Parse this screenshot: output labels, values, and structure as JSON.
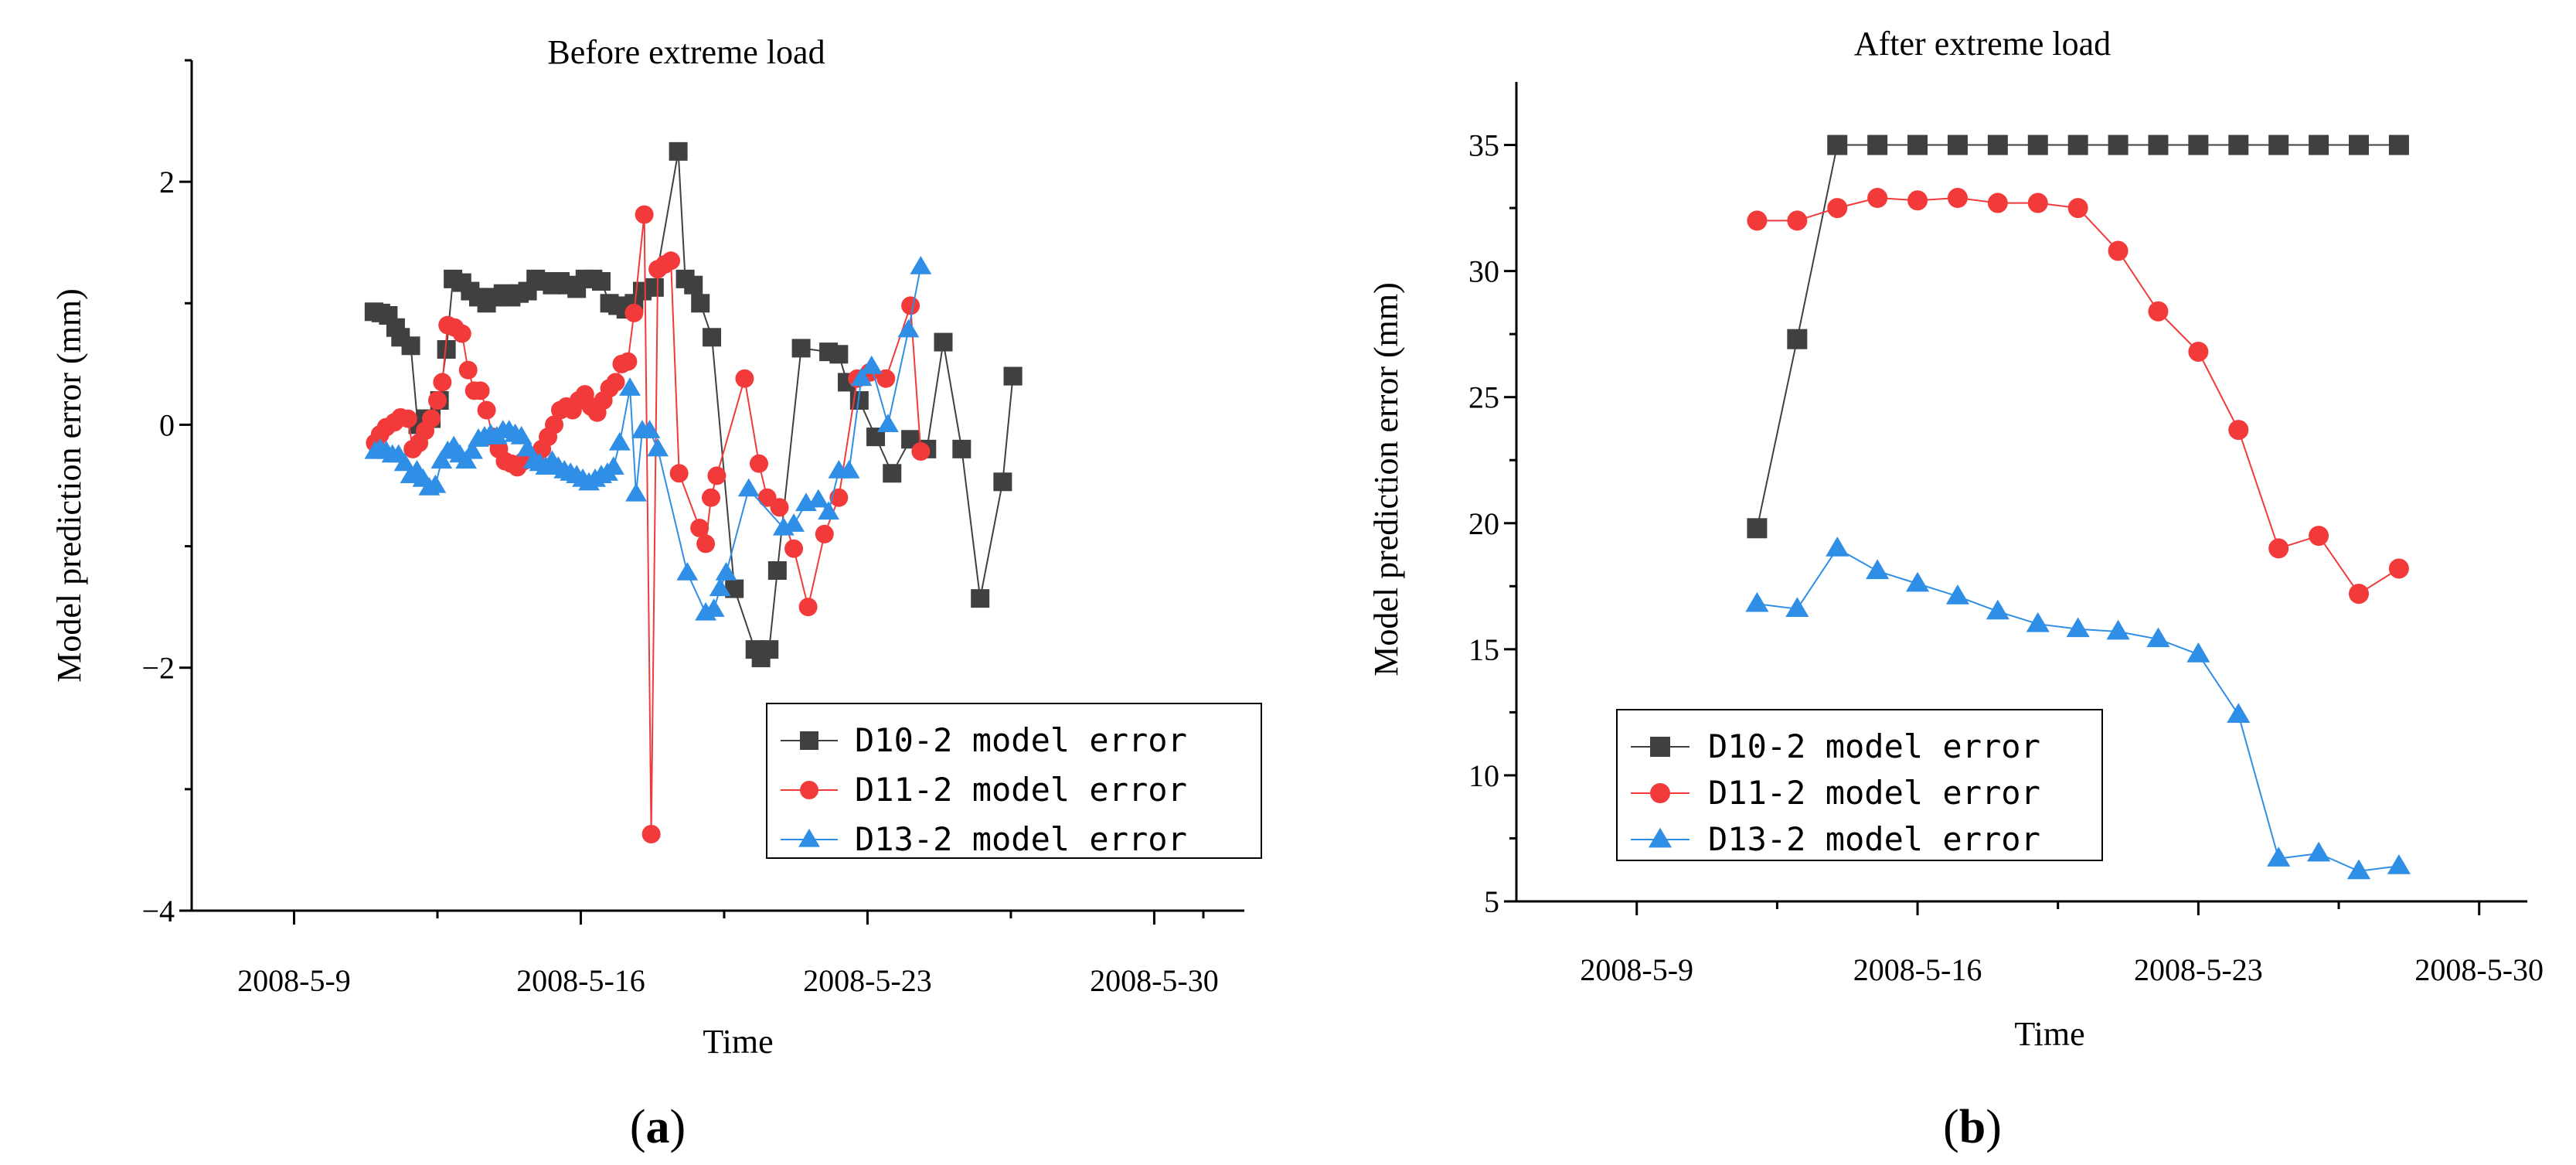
{
  "chart_data": [
    {
      "type": "line",
      "title": "Before extreme load",
      "xlabel": "Time",
      "ylabel": "Model prediction error (mm)",
      "panel_label": "(a)",
      "x_ticks": [
        "2008-5-9",
        "2008-5-16",
        "2008-5-23",
        "2008-5-30"
      ],
      "ylim": [
        -4,
        3
      ],
      "y_ticks": [
        -4,
        -2,
        0,
        2
      ],
      "grid": false,
      "legend_position": "bottom-right",
      "series": [
        {
          "name": "D10-2 model error",
          "color": "#404040",
          "marker": "square",
          "x": [
            "2008-5-10",
            "2008-5-10 06:00",
            "2008-5-10 12:00",
            "2008-5-10 18:00",
            "2008-5-11",
            "2008-5-11 06:00",
            "2008-5-11 12:00",
            "2008-5-11 18:00",
            "2008-5-12",
            "2008-5-12 06:00",
            "2008-5-12 12:00",
            "2008-5-12 18:00",
            "2008-5-13",
            "2008-5-13 06:00",
            "2008-5-13 12:00",
            "2008-5-13 18:00",
            "2008-5-14",
            "2008-5-14 06:00",
            "2008-5-14 12:00",
            "2008-5-14 18:00",
            "2008-5-15",
            "2008-5-15 06:00",
            "2008-5-15 12:00",
            "2008-5-15 18:00",
            "2008-5-16",
            "2008-5-16 06:00",
            "2008-5-16 12:00",
            "2008-5-16 18:00",
            "2008-5-17",
            "2008-5-17 06:00",
            "2008-5-17 12:00",
            "2008-5-17 18:00",
            "2008-5-18",
            "2008-5-18 06:00",
            "2008-5-18 12:00",
            "2008-5-18 18:00",
            "2008-5-19",
            "2008-5-19 06:00",
            "2008-5-19 12:00",
            "2008-5-19 18:00",
            "2008-5-20",
            "2008-5-20 06:00",
            "2008-5-20 12:00",
            "2008-5-20 18:00",
            "2008-5-21",
            "2008-5-21 12:00",
            "2008-5-22",
            "2008-5-22 12:00",
            "2008-5-23",
            "2008-5-23 06:00",
            "2008-5-23 12:00",
            "2008-5-23 18:00",
            "2008-5-24",
            "2008-5-24 12:00",
            "2008-5-25",
            "2008-5-25 12:00",
            "2008-5-26",
            "2008-5-26 12:00",
            "2008-5-27",
            "2008-5-27 12:00",
            "2008-5-28"
          ],
          "y": [
            0.93,
            0.92,
            0.9,
            0.8,
            0.72,
            0.65,
            0.0,
            0.05,
            0.05,
            0.2,
            0.62,
            1.2,
            1.17,
            1.1,
            1.05,
            1.0,
            1.05,
            1.08,
            1.05,
            1.08,
            1.1,
            1.2,
            1.18,
            1.15,
            1.18,
            1.15,
            1.12,
            1.2,
            1.2,
            1.18,
            1.0,
            0.98,
            0.95,
            1.0,
            1.1,
            1.13,
            2.25,
            1.2,
            1.15,
            1.0,
            0.72,
            -1.35,
            -1.85,
            -1.92,
            -1.85,
            -1.2,
            0.63,
            0.6,
            0.58,
            0.35,
            0.2,
            -0.1,
            -0.4,
            -0.12,
            -0.2,
            0.68,
            -0.2,
            -1.43,
            -0.47,
            0.4,
            0.4
          ],
          "x_days": [
            10.95,
            11.12,
            11.3,
            11.48,
            11.6,
            11.85,
            12.02,
            12.2,
            12.35,
            12.55,
            12.72,
            12.88,
            13.1,
            13.3,
            13.5,
            13.7,
            13.9,
            14.1,
            14.3,
            14.5,
            14.7,
            14.9,
            15.1,
            15.3,
            15.5,
            15.7,
            15.9,
            16.1,
            16.3,
            16.5,
            16.7,
            16.9,
            17.1,
            17.3,
            17.5,
            17.8,
            18.38,
            18.55,
            18.75,
            18.92,
            19.2,
            19.75,
            20.25,
            20.4,
            20.6,
            20.8,
            21.38,
            22.05,
            22.3,
            22.5,
            22.8,
            23.2,
            23.6,
            24.05,
            24.45,
            24.85,
            25.3,
            25.75,
            26.3,
            26.55,
            26.55
          ]
        },
        {
          "name": "D11-2 model error",
          "color": "#f23a3a",
          "marker": "circle",
          "y": [
            -0.15,
            -0.08,
            -0.02,
            0.02,
            0.06,
            0.05,
            -0.2,
            -0.15,
            -0.05,
            0.05,
            0.2,
            0.35,
            0.82,
            0.8,
            0.75,
            0.45,
            0.28,
            0.28,
            0.12,
            -0.1,
            -0.2,
            -0.3,
            -0.32,
            -0.35,
            -0.3,
            -0.28,
            -0.3,
            -0.2,
            -0.1,
            0.0,
            0.12,
            0.15,
            0.12,
            0.2,
            0.25,
            0.15,
            0.1,
            0.2,
            0.3,
            0.35,
            0.5,
            0.52,
            0.92,
            1.73,
            -3.37,
            1.28,
            1.32,
            1.35,
            -0.4,
            -0.85,
            -0.98,
            -0.6,
            -0.42,
            0.38,
            -0.32,
            -0.6,
            -0.68,
            -1.02,
            -1.5,
            -0.9,
            -0.6,
            0.38,
            0.43,
            0.38,
            0.98,
            -0.22
          ],
          "x_days": [
            10.98,
            11.1,
            11.25,
            11.45,
            11.6,
            11.78,
            11.9,
            12.05,
            12.2,
            12.35,
            12.5,
            12.62,
            12.75,
            12.92,
            13.1,
            13.25,
            13.4,
            13.55,
            13.7,
            13.85,
            14.0,
            14.15,
            14.3,
            14.45,
            14.6,
            14.75,
            14.9,
            15.05,
            15.2,
            15.35,
            15.5,
            15.65,
            15.8,
            15.95,
            16.1,
            16.25,
            16.4,
            16.55,
            16.7,
            16.85,
            17.0,
            17.15,
            17.3,
            17.55,
            17.72,
            17.88,
            18.05,
            18.2,
            18.4,
            18.9,
            19.05,
            19.18,
            19.32,
            20.0,
            20.35,
            20.55,
            20.85,
            21.2,
            21.55,
            21.95,
            22.3,
            22.75,
            23.05,
            23.45,
            24.05,
            24.3
          ]
        },
        {
          "name": "D13-2 model error",
          "color": "#2f8ee6",
          "marker": "triangle",
          "y": [
            -0.22,
            -0.2,
            -0.22,
            -0.25,
            -0.25,
            -0.32,
            -0.42,
            -0.38,
            -0.45,
            -0.52,
            -0.5,
            -0.3,
            -0.22,
            -0.18,
            -0.25,
            -0.3,
            -0.22,
            -0.12,
            -0.1,
            -0.08,
            -0.1,
            -0.05,
            -0.05,
            -0.08,
            -0.1,
            -0.2,
            -0.3,
            -0.32,
            -0.35,
            -0.3,
            -0.35,
            -0.38,
            -0.4,
            -0.42,
            -0.45,
            -0.48,
            -0.45,
            -0.42,
            -0.4,
            -0.35,
            -0.15,
            0.3,
            -0.57,
            -0.05,
            -0.05,
            -0.2,
            -1.22,
            -1.55,
            -1.52,
            -1.35,
            -1.22,
            -0.53,
            -0.85,
            -0.82,
            -0.65,
            -0.62,
            -0.72,
            -0.38,
            -0.38,
            0.38,
            0.48,
            0.0,
            0.78,
            1.3
          ],
          "x_days": [
            10.98,
            11.1,
            11.25,
            11.4,
            11.55,
            11.7,
            11.85,
            12.0,
            12.15,
            12.3,
            12.45,
            12.6,
            12.75,
            12.9,
            13.05,
            13.2,
            13.35,
            13.5,
            13.65,
            13.8,
            13.95,
            14.1,
            14.25,
            14.4,
            14.55,
            14.7,
            14.85,
            15.0,
            15.15,
            15.3,
            15.45,
            15.6,
            15.75,
            15.9,
            16.05,
            16.2,
            16.35,
            16.5,
            16.65,
            16.8,
            16.95,
            17.2,
            17.35,
            17.5,
            17.68,
            17.88,
            18.6,
            19.05,
            19.25,
            19.4,
            19.55,
            20.1,
            20.95,
            21.2,
            21.5,
            21.8,
            22.05,
            22.3,
            22.55,
            22.85,
            23.1,
            23.5,
            24.0,
            24.3
          ]
        }
      ]
    },
    {
      "type": "line",
      "title": "After extreme load",
      "xlabel": "Time",
      "ylabel": "Model prediction error (mm)",
      "panel_label": "(b)",
      "x_ticks": [
        "2008-5-9",
        "2008-5-16",
        "2008-5-23",
        "2008-5-30"
      ],
      "ylim": [
        5,
        37.5
      ],
      "y_ticks": [
        5,
        10,
        15,
        20,
        25,
        30,
        35
      ],
      "grid": false,
      "legend_position": "bottom-left",
      "x": [
        "2008-5-12",
        "2008-5-13",
        "2008-5-14",
        "2008-5-15",
        "2008-5-16",
        "2008-5-17",
        "2008-5-18",
        "2008-5-19",
        "2008-5-20",
        "2008-5-21",
        "2008-5-22",
        "2008-5-23",
        "2008-5-24",
        "2008-5-25",
        "2008-5-26",
        "2008-5-27",
        "2008-5-28"
      ],
      "series": [
        {
          "name": "D10-2 model error",
          "color": "#404040",
          "marker": "square",
          "values": [
            19.8,
            27.3,
            35.0,
            35.0,
            35.0,
            35.0,
            35.0,
            35.0,
            35.0,
            35.0,
            35.0,
            35.0,
            35.0,
            35.0,
            35.0,
            35.0,
            35.0
          ]
        },
        {
          "name": "D11-2 model error",
          "color": "#f23a3a",
          "marker": "circle",
          "values": [
            32.0,
            32.0,
            32.5,
            32.9,
            32.8,
            32.9,
            32.7,
            32.7,
            32.5,
            30.8,
            28.4,
            26.8,
            23.7,
            19.0,
            19.5,
            17.2,
            18.2
          ]
        },
        {
          "name": "D13-2 model error",
          "color": "#2f8ee6",
          "marker": "triangle",
          "values": [
            16.8,
            16.6,
            19.0,
            18.1,
            17.6,
            17.1,
            16.5,
            16.0,
            15.8,
            15.7,
            15.4,
            14.8,
            12.4,
            6.7,
            6.9,
            6.2,
            6.4
          ]
        }
      ]
    }
  ]
}
